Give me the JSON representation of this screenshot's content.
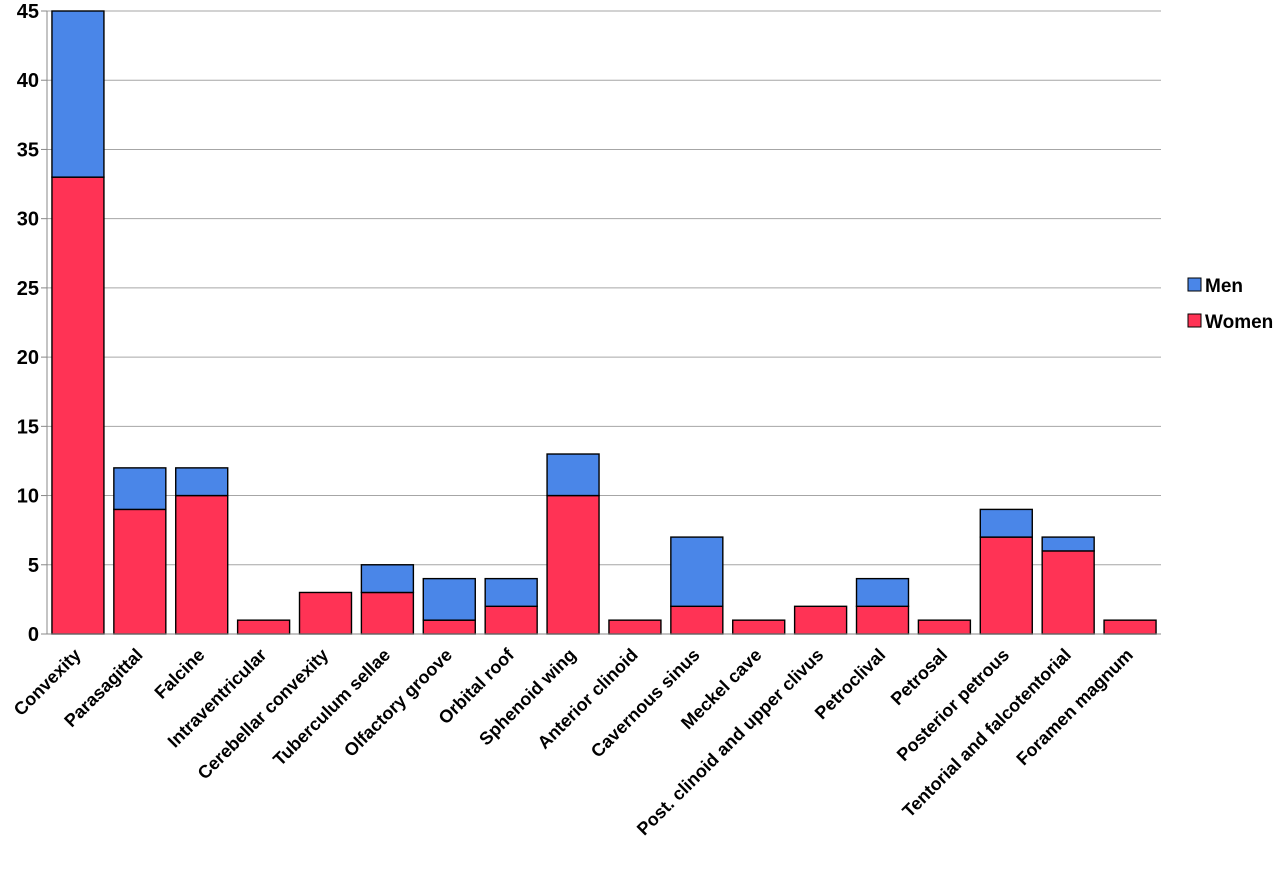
{
  "chart_data": {
    "type": "bar",
    "stacked": true,
    "categories": [
      "Convexity",
      "Parasagittal",
      "Falcine",
      "Intraventricular",
      "Cerebellar convexity",
      "Tuberculum sellae",
      "Olfactory groove",
      "Orbital roof",
      "Sphenoid wing",
      "Anterior clinoid",
      "Cavernous sinus",
      "Meckel cave",
      "Post. clinoid and upper clivus",
      "Petroclival",
      "Petrosal",
      "Posterior petrous",
      "Tentorial and falcotentorial",
      "Foramen magnum"
    ],
    "series": [
      {
        "name": "Women",
        "color": "#FF3355",
        "values": [
          33,
          9,
          10,
          1,
          3,
          3,
          1,
          2,
          10,
          1,
          2,
          1,
          2,
          2,
          1,
          7,
          6,
          1
        ]
      },
      {
        "name": "Men",
        "color": "#4A86E8",
        "values": [
          12,
          3,
          2,
          0,
          0,
          2,
          3,
          2,
          3,
          0,
          5,
          0,
          0,
          2,
          0,
          2,
          1,
          0
        ]
      }
    ],
    "ylim": [
      0,
      45
    ],
    "yticks": [
      0,
      5,
      10,
      15,
      20,
      25,
      30,
      35,
      40,
      45
    ],
    "grid": true,
    "legend_position": "right",
    "legend_order": [
      "Men",
      "Women"
    ],
    "title": "",
    "xlabel": "",
    "ylabel": ""
  }
}
